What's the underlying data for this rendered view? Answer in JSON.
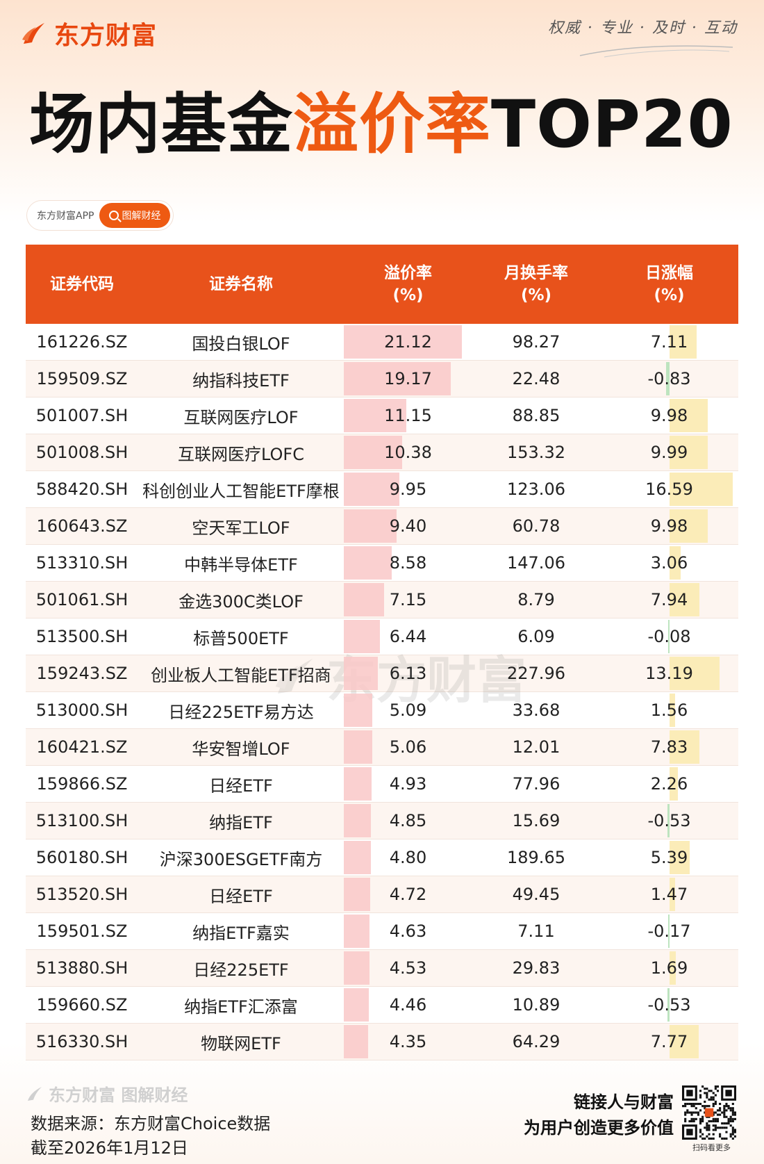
{
  "header": {
    "brand": "东方财富",
    "slogan": "权威 · 专业 · 及时 · 互动",
    "title_part1": "场内基金",
    "title_part2": "溢价率",
    "title_part3": "TOP20",
    "badge_left": "东方财富APP",
    "badge_right": "图解财经"
  },
  "table": {
    "headers": {
      "code": "证券代码",
      "name": "证券名称",
      "premium": "溢价率",
      "premium_unit": "(%)",
      "turnover": "月换手率",
      "turnover_unit": "(%)",
      "change": "日涨幅",
      "change_unit": "(%)"
    },
    "rows": [
      {
        "code": "161226.SZ",
        "name": "国投白银LOF",
        "premium": "21.12",
        "turnover": "98.27",
        "change": "7.11"
      },
      {
        "code": "159509.SZ",
        "name": "纳指科技ETF",
        "premium": "19.17",
        "turnover": "22.48",
        "change": "-0.83"
      },
      {
        "code": "501007.SH",
        "name": "互联网医疗LOF",
        "premium": "11.15",
        "turnover": "88.85",
        "change": "9.98"
      },
      {
        "code": "501008.SH",
        "name": "互联网医疗LOFC",
        "premium": "10.38",
        "turnover": "153.32",
        "change": "9.99"
      },
      {
        "code": "588420.SH",
        "name": "科创创业人工智能ETF摩根",
        "premium": "9.95",
        "turnover": "123.06",
        "change": "16.59"
      },
      {
        "code": "160643.SZ",
        "name": "空天军工LOF",
        "premium": "9.40",
        "turnover": "60.78",
        "change": "9.98"
      },
      {
        "code": "513310.SH",
        "name": "中韩半导体ETF",
        "premium": "8.58",
        "turnover": "147.06",
        "change": "3.06"
      },
      {
        "code": "501061.SH",
        "name": "金选300C类LOF",
        "premium": "7.15",
        "turnover": "8.79",
        "change": "7.94"
      },
      {
        "code": "513500.SH",
        "name": "标普500ETF",
        "premium": "6.44",
        "turnover": "6.09",
        "change": "-0.08"
      },
      {
        "code": "159243.SZ",
        "name": "创业板人工智能ETF招商",
        "premium": "6.13",
        "turnover": "227.96",
        "change": "13.19"
      },
      {
        "code": "513000.SH",
        "name": "日经225ETF易方达",
        "premium": "5.09",
        "turnover": "33.68",
        "change": "1.56"
      },
      {
        "code": "160421.SZ",
        "name": "华安智增LOF",
        "premium": "5.06",
        "turnover": "12.01",
        "change": "7.83"
      },
      {
        "code": "159866.SZ",
        "name": "日经ETF",
        "premium": "4.93",
        "turnover": "77.96",
        "change": "2.26"
      },
      {
        "code": "513100.SH",
        "name": "纳指ETF",
        "premium": "4.85",
        "turnover": "15.69",
        "change": "-0.53"
      },
      {
        "code": "560180.SH",
        "name": "沪深300ESGETF南方",
        "premium": "4.80",
        "turnover": "189.65",
        "change": "5.39"
      },
      {
        "code": "513520.SH",
        "name": "日经ETF",
        "premium": "4.72",
        "turnover": "49.45",
        "change": "1.47"
      },
      {
        "code": "159501.SZ",
        "name": "纳指ETF嘉实",
        "premium": "4.63",
        "turnover": "7.11",
        "change": "-0.17"
      },
      {
        "code": "513880.SH",
        "name": "日经225ETF",
        "premium": "4.53",
        "turnover": "29.83",
        "change": "1.69"
      },
      {
        "code": "159660.SZ",
        "name": "纳指ETF汇添富",
        "premium": "4.46",
        "turnover": "10.89",
        "change": "-0.53"
      },
      {
        "code": "516330.SH",
        "name": "物联网ETF",
        "premium": "4.35",
        "turnover": "64.29",
        "change": "7.77"
      }
    ]
  },
  "footer": {
    "brand_small": "东方财富 图解财经",
    "source": "数据来源：东方财富Choice数据",
    "date": "截至2026年1月12日",
    "slogan_line1": "链接人与财富",
    "slogan_line2": "为用户创造更多价值",
    "qr_label": "扫码看更多"
  },
  "colors": {
    "brand_orange": "#e8521b",
    "premium_bar": "#f9c8c8",
    "positive_bar": "#fbecb8",
    "negative_bar": "#bde4bf"
  }
}
